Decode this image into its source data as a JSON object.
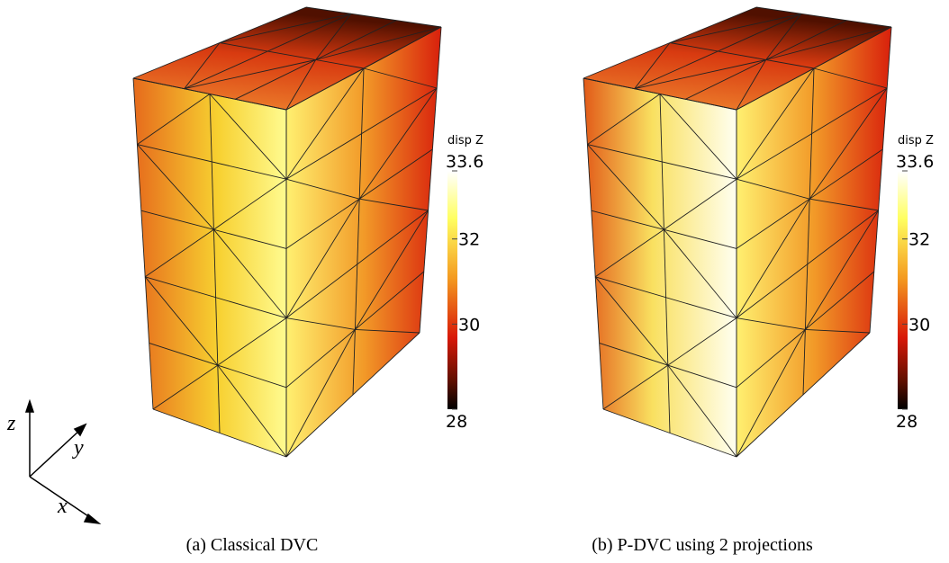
{
  "panels": [
    {
      "caption": "(a) Classical DVC",
      "colorbar": {
        "title": "disp Z",
        "range": [
          28,
          33.6
        ],
        "ticks": [
          33.6,
          32,
          30,
          28
        ]
      }
    },
    {
      "caption": "(b) P-DVC using 2 projections",
      "colorbar": {
        "title": "disp Z",
        "range": [
          28,
          33.6
        ],
        "ticks": [
          33.6,
          32,
          30,
          28
        ]
      }
    }
  ],
  "axes": {
    "z": "z",
    "y": "y",
    "x": "x"
  }
}
